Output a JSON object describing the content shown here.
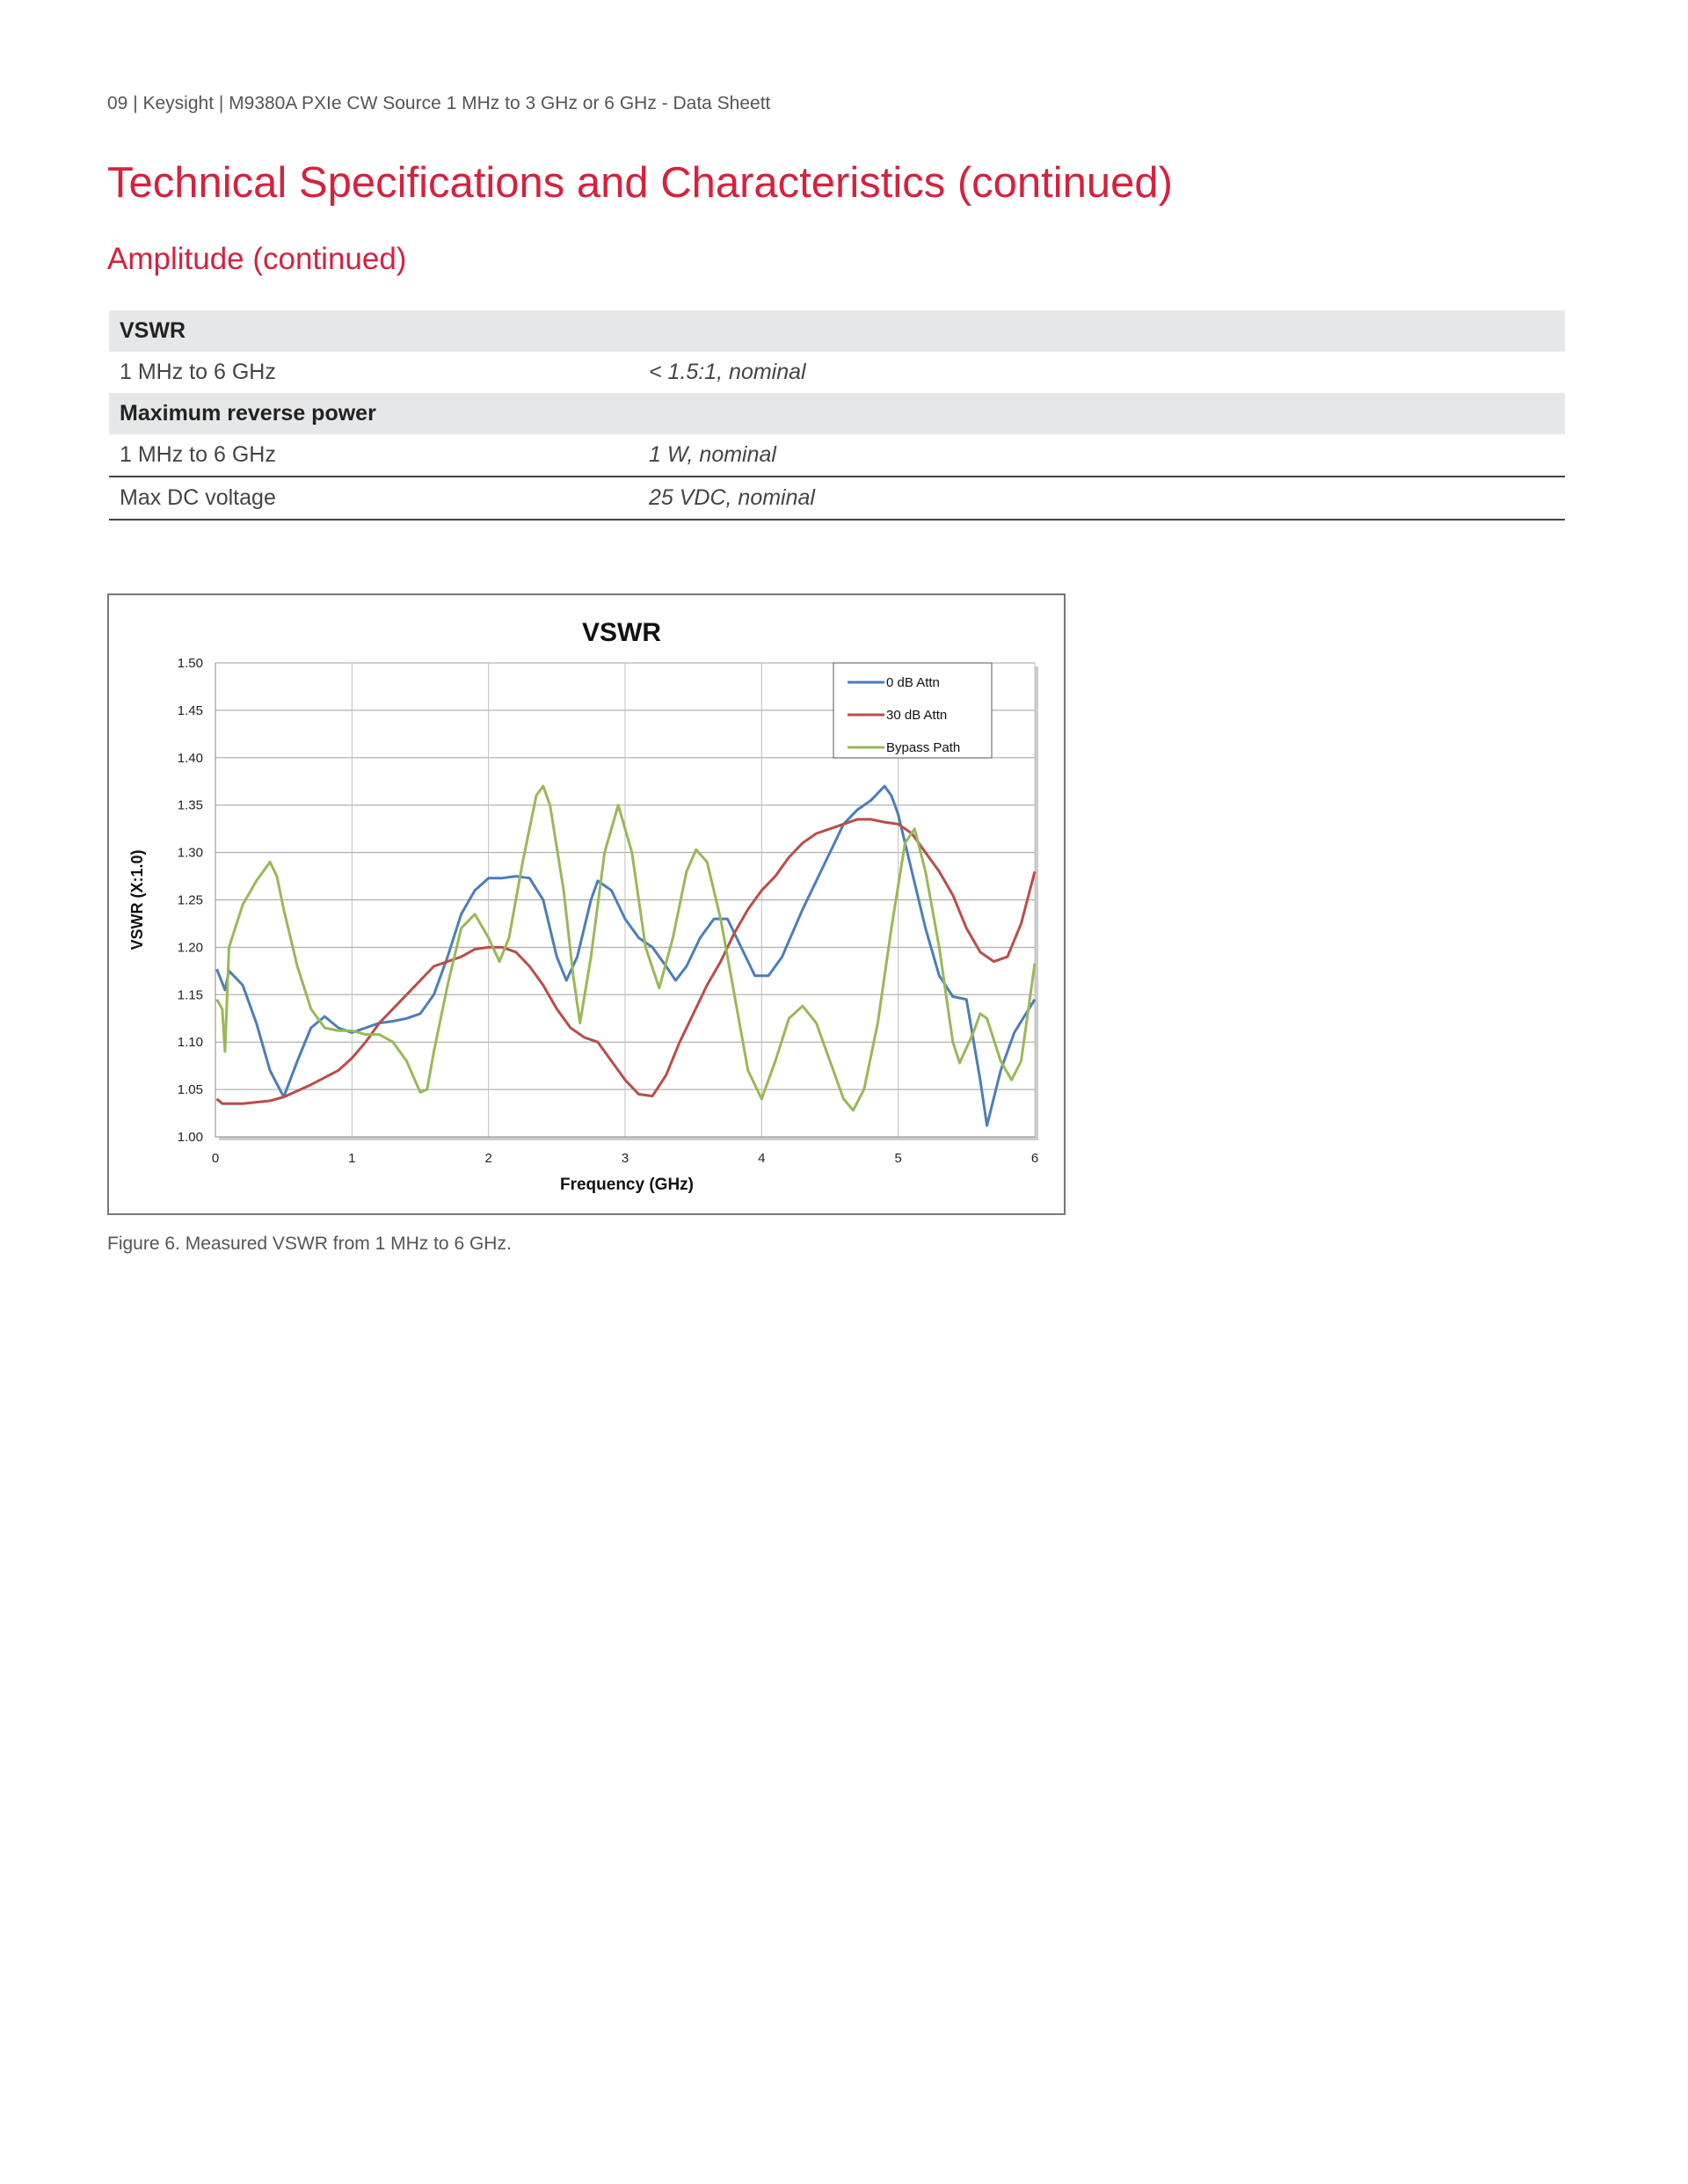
{
  "header": "09 | Keysight | M9380A PXIe CW Source 1 MHz to 3 GHz or 6 GHz - Data Sheett",
  "title": "Technical Specifications and Characteristics (continued)",
  "subtitle": "Amplitude (continued)",
  "table": {
    "vswr_heading": "VSWR",
    "vswr_row": {
      "label": "1 MHz to 6 GHz",
      "value": "< 1.5:1, nominal"
    },
    "power_heading": "Maximum reverse power",
    "power_row": {
      "label": "1 MHz to 6 GHz",
      "value": "1 W, nominal"
    },
    "dc_row": {
      "label": "Max DC voltage",
      "value": "25 VDC, nominal"
    }
  },
  "caption": "Figure 6. Measured VSWR from 1 MHz to 6 GHz.",
  "chart_data": {
    "type": "line",
    "title": "VSWR",
    "xlabel": "Frequency (GHz)",
    "ylabel": "VSWR (X:1.0)",
    "xlim": [
      0,
      6
    ],
    "ylim": [
      1.0,
      1.5
    ],
    "xticks": [
      "0",
      "1",
      "2",
      "3",
      "4",
      "5",
      "6"
    ],
    "yticks": [
      "1.00",
      "1.05",
      "1.10",
      "1.15",
      "1.20",
      "1.25",
      "1.30",
      "1.35",
      "1.40",
      "1.45",
      "1.50"
    ],
    "grid": true,
    "legend": "top-right",
    "series": [
      {
        "name": "0 dB Attn",
        "color": "#4a7ebb",
        "points": [
          [
            0.01,
            1.177
          ],
          [
            0.07,
            1.155
          ],
          [
            0.1,
            1.175
          ],
          [
            0.2,
            1.16
          ],
          [
            0.3,
            1.12
          ],
          [
            0.4,
            1.07
          ],
          [
            0.5,
            1.042
          ],
          [
            0.6,
            1.08
          ],
          [
            0.7,
            1.115
          ],
          [
            0.8,
            1.127
          ],
          [
            0.9,
            1.115
          ],
          [
            1.0,
            1.11
          ],
          [
            1.1,
            1.115
          ],
          [
            1.2,
            1.12
          ],
          [
            1.3,
            1.122
          ],
          [
            1.4,
            1.125
          ],
          [
            1.5,
            1.13
          ],
          [
            1.6,
            1.15
          ],
          [
            1.7,
            1.19
          ],
          [
            1.8,
            1.235
          ],
          [
            1.9,
            1.26
          ],
          [
            2.0,
            1.273
          ],
          [
            2.1,
            1.273
          ],
          [
            2.2,
            1.275
          ],
          [
            2.3,
            1.273
          ],
          [
            2.4,
            1.25
          ],
          [
            2.5,
            1.19
          ],
          [
            2.57,
            1.165
          ],
          [
            2.65,
            1.19
          ],
          [
            2.75,
            1.25
          ],
          [
            2.8,
            1.27
          ],
          [
            2.9,
            1.26
          ],
          [
            3.0,
            1.23
          ],
          [
            3.1,
            1.21
          ],
          [
            3.2,
            1.2
          ],
          [
            3.3,
            1.18
          ],
          [
            3.37,
            1.165
          ],
          [
            3.45,
            1.18
          ],
          [
            3.55,
            1.21
          ],
          [
            3.65,
            1.23
          ],
          [
            3.75,
            1.23
          ],
          [
            3.85,
            1.2
          ],
          [
            3.95,
            1.17
          ],
          [
            4.05,
            1.17
          ],
          [
            4.15,
            1.19
          ],
          [
            4.3,
            1.24
          ],
          [
            4.4,
            1.27
          ],
          [
            4.5,
            1.3
          ],
          [
            4.6,
            1.33
          ],
          [
            4.7,
            1.345
          ],
          [
            4.8,
            1.355
          ],
          [
            4.9,
            1.37
          ],
          [
            4.95,
            1.36
          ],
          [
            5.0,
            1.34
          ],
          [
            5.1,
            1.28
          ],
          [
            5.2,
            1.22
          ],
          [
            5.3,
            1.17
          ],
          [
            5.4,
            1.148
          ],
          [
            5.5,
            1.145
          ],
          [
            5.6,
            1.06
          ],
          [
            5.65,
            1.012
          ],
          [
            5.75,
            1.07
          ],
          [
            5.85,
            1.11
          ],
          [
            6.0,
            1.145
          ]
        ]
      },
      {
        "name": "30 dB Attn",
        "color": "#be4b48",
        "points": [
          [
            0.01,
            1.04
          ],
          [
            0.05,
            1.035
          ],
          [
            0.2,
            1.035
          ],
          [
            0.4,
            1.038
          ],
          [
            0.5,
            1.042
          ],
          [
            0.7,
            1.055
          ],
          [
            0.9,
            1.07
          ],
          [
            1.0,
            1.083
          ],
          [
            1.1,
            1.1
          ],
          [
            1.2,
            1.12
          ],
          [
            1.3,
            1.135
          ],
          [
            1.4,
            1.15
          ],
          [
            1.5,
            1.165
          ],
          [
            1.6,
            1.18
          ],
          [
            1.8,
            1.19
          ],
          [
            1.9,
            1.198
          ],
          [
            2.0,
            1.2
          ],
          [
            2.1,
            1.2
          ],
          [
            2.2,
            1.195
          ],
          [
            2.3,
            1.18
          ],
          [
            2.4,
            1.16
          ],
          [
            2.5,
            1.135
          ],
          [
            2.6,
            1.115
          ],
          [
            2.7,
            1.105
          ],
          [
            2.8,
            1.1
          ],
          [
            2.9,
            1.08
          ],
          [
            3.0,
            1.06
          ],
          [
            3.1,
            1.045
          ],
          [
            3.2,
            1.043
          ],
          [
            3.3,
            1.065
          ],
          [
            3.4,
            1.1
          ],
          [
            3.5,
            1.13
          ],
          [
            3.6,
            1.16
          ],
          [
            3.7,
            1.185
          ],
          [
            3.8,
            1.215
          ],
          [
            3.9,
            1.24
          ],
          [
            4.0,
            1.26
          ],
          [
            4.1,
            1.275
          ],
          [
            4.2,
            1.295
          ],
          [
            4.3,
            1.31
          ],
          [
            4.4,
            1.32
          ],
          [
            4.5,
            1.325
          ],
          [
            4.6,
            1.33
          ],
          [
            4.7,
            1.335
          ],
          [
            4.8,
            1.335
          ],
          [
            4.9,
            1.332
          ],
          [
            5.0,
            1.33
          ],
          [
            5.1,
            1.32
          ],
          [
            5.2,
            1.3
          ],
          [
            5.3,
            1.28
          ],
          [
            5.4,
            1.255
          ],
          [
            5.5,
            1.22
          ],
          [
            5.6,
            1.195
          ],
          [
            5.7,
            1.185
          ],
          [
            5.8,
            1.19
          ],
          [
            5.9,
            1.225
          ],
          [
            6.0,
            1.28
          ]
        ]
      },
      {
        "name": "Bypass Path",
        "color": "#98b954",
        "points": [
          [
            0.01,
            1.145
          ],
          [
            0.05,
            1.135
          ],
          [
            0.07,
            1.09
          ],
          [
            0.1,
            1.2
          ],
          [
            0.2,
            1.245
          ],
          [
            0.3,
            1.27
          ],
          [
            0.4,
            1.29
          ],
          [
            0.45,
            1.275
          ],
          [
            0.5,
            1.24
          ],
          [
            0.6,
            1.18
          ],
          [
            0.7,
            1.135
          ],
          [
            0.8,
            1.115
          ],
          [
            0.9,
            1.112
          ],
          [
            1.0,
            1.112
          ],
          [
            1.1,
            1.108
          ],
          [
            1.2,
            1.108
          ],
          [
            1.3,
            1.1
          ],
          [
            1.4,
            1.08
          ],
          [
            1.5,
            1.047
          ],
          [
            1.55,
            1.05
          ],
          [
            1.6,
            1.09
          ],
          [
            1.7,
            1.16
          ],
          [
            1.8,
            1.22
          ],
          [
            1.9,
            1.235
          ],
          [
            2.0,
            1.21
          ],
          [
            2.08,
            1.185
          ],
          [
            2.15,
            1.21
          ],
          [
            2.25,
            1.29
          ],
          [
            2.35,
            1.36
          ],
          [
            2.4,
            1.37
          ],
          [
            2.45,
            1.35
          ],
          [
            2.55,
            1.26
          ],
          [
            2.62,
            1.17
          ],
          [
            2.67,
            1.12
          ],
          [
            2.75,
            1.19
          ],
          [
            2.85,
            1.3
          ],
          [
            2.95,
            1.35
          ],
          [
            3.05,
            1.3
          ],
          [
            3.15,
            1.2
          ],
          [
            3.25,
            1.157
          ],
          [
            3.35,
            1.21
          ],
          [
            3.45,
            1.28
          ],
          [
            3.52,
            1.303
          ],
          [
            3.6,
            1.29
          ],
          [
            3.7,
            1.23
          ],
          [
            3.8,
            1.15
          ],
          [
            3.9,
            1.07
          ],
          [
            4.0,
            1.04
          ],
          [
            4.1,
            1.08
          ],
          [
            4.2,
            1.125
          ],
          [
            4.3,
            1.138
          ],
          [
            4.4,
            1.12
          ],
          [
            4.5,
            1.08
          ],
          [
            4.6,
            1.04
          ],
          [
            4.67,
            1.028
          ],
          [
            4.75,
            1.05
          ],
          [
            4.85,
            1.12
          ],
          [
            4.95,
            1.22
          ],
          [
            5.05,
            1.31
          ],
          [
            5.12,
            1.325
          ],
          [
            5.2,
            1.28
          ],
          [
            5.3,
            1.2
          ],
          [
            5.4,
            1.1
          ],
          [
            5.45,
            1.078
          ],
          [
            5.55,
            1.11
          ],
          [
            5.6,
            1.13
          ],
          [
            5.65,
            1.125
          ],
          [
            5.75,
            1.08
          ],
          [
            5.83,
            1.06
          ],
          [
            5.9,
            1.08
          ],
          [
            6.0,
            1.183
          ]
        ]
      }
    ]
  }
}
